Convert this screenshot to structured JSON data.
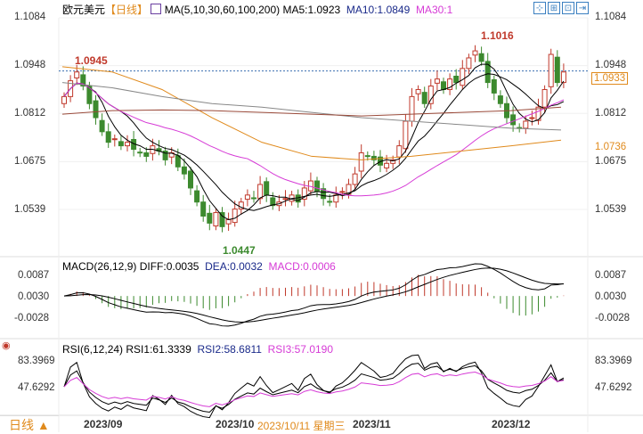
{
  "header": {
    "symbol": "欧元美元",
    "period": "【日线】",
    "ma_label": "MA(5,10,30,60,100,200)",
    "ma5": "MA5:1.0923",
    "ma10": "MA10:1.0849",
    "ma30": "MA30:1"
  },
  "toolbar": [
    "⊹",
    "⊞",
    "⊡",
    "⇥"
  ],
  "price_axis": [
    "1.1084",
    "1.0948",
    "1.0812",
    "1.0675",
    "1.0539"
  ],
  "price_labels": {
    "last": "1.0933",
    "ma_tag": "1.0736",
    "high": "1.1016",
    "left_high": "1.0945",
    "low": "1.0447"
  },
  "macd": {
    "label": "MACD(26,12,9)",
    "diff": "DIFF:0.0035",
    "dea": "DEA:0.0032",
    "macd": "MACD:0.0006",
    "axis": [
      "0.0087",
      "0.0030",
      "-0.0028"
    ]
  },
  "rsi": {
    "label": "RSI(6,12,24)",
    "rsi1": "RSI1:61.3339",
    "rsi2": "RSI2:58.6811",
    "rsi3": "RSI3:57.0190",
    "axis": [
      "83.3969",
      "47.6292"
    ]
  },
  "footer": {
    "period_button": "日线 ▲",
    "dates": [
      "2023/09",
      "2023/10",
      "2023/11",
      "2023/12"
    ],
    "cursor_date": "2023/10/11 星期三"
  },
  "colors": {
    "up": "#c0392b",
    "down": "#3c8a2e",
    "ma5": "#000000",
    "ma10": "#000000",
    "ma30": "#d63bd6",
    "ma60": "#e08a1c",
    "ma100": "#888888",
    "ma200": "#9a4a3a"
  },
  "chart_data": {
    "type": "candlestick",
    "ylim": [
      1.0447,
      1.1084
    ],
    "closes": [
      1.086,
      1.0905,
      1.093,
      1.089,
      1.084,
      1.08,
      1.076,
      1.073,
      1.074,
      1.072,
      1.073,
      1.071,
      1.07,
      1.069,
      1.072,
      1.0705,
      1.068,
      1.07,
      1.066,
      1.064,
      1.06,
      1.056,
      1.052,
      1.05,
      1.053,
      1.049,
      1.051,
      1.054,
      1.056,
      1.058,
      1.057,
      1.061,
      1.058,
      1.055,
      1.056,
      1.057,
      1.058,
      1.056,
      1.06,
      1.062,
      1.059,
      1.057,
      1.056,
      1.058,
      1.059,
      1.061,
      1.064,
      1.07,
      1.069,
      1.068,
      1.0665,
      1.067,
      1.068,
      1.072,
      1.079,
      1.086,
      1.088,
      1.084,
      1.089,
      1.091,
      1.088,
      1.091,
      1.09,
      1.094,
      1.097,
      1.099,
      1.096,
      1.09,
      1.087,
      1.084,
      1.08,
      1.078,
      1.077,
      1.079,
      1.08,
      1.083,
      1.088,
      1.098,
      1.09,
      1.093
    ],
    "ma60": [
      1.0945,
      1.093,
      1.088,
      1.08,
      1.073,
      1.069,
      1.068,
      1.069,
      1.0705,
      1.072,
      1.0736
    ],
    "ma100": [
      1.09,
      1.0885,
      1.086,
      1.084,
      1.083,
      1.0815,
      1.08,
      1.079,
      1.078,
      1.077,
      1.0765
    ],
    "ma200": [
      1.081,
      1.082,
      1.0822,
      1.082,
      1.0815,
      1.081,
      1.0805,
      1.081,
      1.0815,
      1.082,
      1.083
    ]
  }
}
